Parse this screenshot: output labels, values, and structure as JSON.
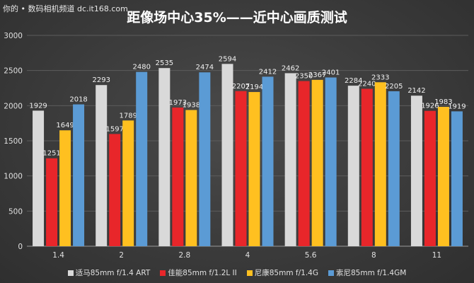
{
  "watermark": "你的 • 数码相机频道 dc.it168.com",
  "chart_data": {
    "type": "bar",
    "title": "距像场中心35%——近中心画质测试",
    "xlabel": "",
    "ylabel": "",
    "ylim": [
      0,
      3000
    ],
    "yticks": [
      0,
      500,
      1000,
      1500,
      2000,
      2500,
      3000
    ],
    "grid": true,
    "legend_position": "bottom",
    "data_labels": true,
    "categories": [
      "1.4",
      "2",
      "2.8",
      "4",
      "5.6",
      "8",
      "11"
    ],
    "series": [
      {
        "name": "适马85mm f/1.4 ART",
        "color": "#d9d9d9",
        "values": [
          1929,
          2293,
          2535,
          2594,
          2462,
          2284,
          2142
        ]
      },
      {
        "name": "佳能85mm f/1.2L II",
        "color": "#e8262a",
        "values": [
          1251,
          1597,
          1973,
          2207,
          2350,
          2240,
          1926
        ]
      },
      {
        "name": "尼康85mm f/1.4G",
        "color": "#ffc020",
        "values": [
          1649,
          1789,
          1938,
          2194,
          2367,
          2333,
          1983
        ]
      },
      {
        "name": "索尼85mm f/1.4GM",
        "color": "#5b9bd5",
        "values": [
          2018,
          2480,
          2474,
          2412,
          2401,
          2205,
          1919
        ]
      }
    ]
  }
}
